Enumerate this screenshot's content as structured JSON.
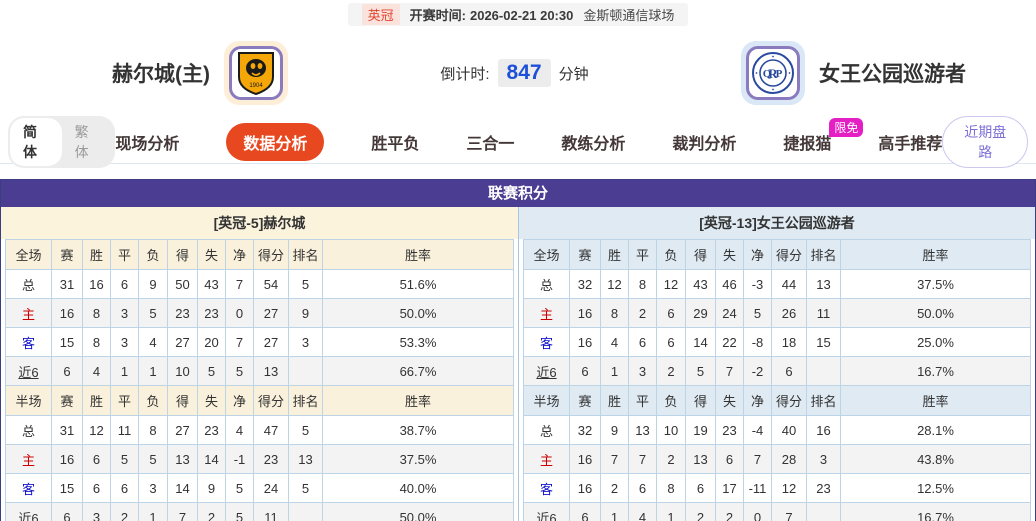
{
  "match_header": {
    "league_badge": "英冠",
    "kickoff_label": "开赛时间:",
    "kickoff_time": "2026-02-21 20:30",
    "venue": "金斯顿通信球场"
  },
  "teams": {
    "home": {
      "name": "赫尔城(主)"
    },
    "away": {
      "name": "女王公园巡游者"
    },
    "countdown": {
      "label": "倒计时:",
      "value": "847",
      "unit": "分钟"
    }
  },
  "nav": {
    "lang_simplified": "简体",
    "lang_traditional": "繁体",
    "tabs": [
      {
        "label": "现场分析",
        "active": false
      },
      {
        "label": "数据分析",
        "active": true
      },
      {
        "label": "胜平负",
        "active": false
      },
      {
        "label": "三合一",
        "active": false
      },
      {
        "label": "教练分析",
        "active": false
      },
      {
        "label": "裁判分析",
        "active": false
      },
      {
        "label": "捷报猫",
        "active": false,
        "badge": "限免"
      },
      {
        "label": "高手推荐",
        "active": false
      }
    ],
    "recent_trends_button": "近期盘路"
  },
  "colors": {
    "panel_header_purple": "#4b3d92",
    "active_tab_red": "#e8481f",
    "badge_magenta": "#e41fc4",
    "trends_purple": "#7d6fd8",
    "home_theme_cream": "#fcf3dd",
    "away_theme_blue": "#dfeaf3",
    "home_row_red": "#cc0000",
    "away_row_blue": "#1414cc",
    "countdown_blue": "#1d4fd8"
  },
  "standings": {
    "title": "联赛积分",
    "left": {
      "section_title": "[英冠-5]赫尔城",
      "sections": [
        {
          "header": [
            "全场",
            "赛",
            "胜",
            "平",
            "负",
            "得",
            "失",
            "净",
            "得分",
            "排名",
            "胜率"
          ],
          "rows": [
            {
              "label": "总",
              "type": "total",
              "cells": [
                "31",
                "16",
                "6",
                "9",
                "50",
                "43",
                "7",
                "54",
                "5",
                "51.6%"
              ]
            },
            {
              "label": "主",
              "type": "home",
              "cells": [
                "16",
                "8",
                "3",
                "5",
                "23",
                "23",
                "0",
                "27",
                "9",
                "50.0%"
              ]
            },
            {
              "label": "客",
              "type": "away",
              "cells": [
                "15",
                "8",
                "3",
                "4",
                "27",
                "20",
                "7",
                "27",
                "3",
                "53.3%"
              ]
            },
            {
              "label": "近6",
              "type": "recent",
              "cells": [
                "6",
                "4",
                "1",
                "1",
                "10",
                "5",
                "5",
                "13",
                "",
                "66.7%"
              ]
            }
          ]
        },
        {
          "header": [
            "半场",
            "赛",
            "胜",
            "平",
            "负",
            "得",
            "失",
            "净",
            "得分",
            "排名",
            "胜率"
          ],
          "rows": [
            {
              "label": "总",
              "type": "total",
              "cells": [
                "31",
                "12",
                "11",
                "8",
                "27",
                "23",
                "4",
                "47",
                "5",
                "38.7%"
              ]
            },
            {
              "label": "主",
              "type": "home",
              "cells": [
                "16",
                "6",
                "5",
                "5",
                "13",
                "14",
                "-1",
                "23",
                "13",
                "37.5%"
              ]
            },
            {
              "label": "客",
              "type": "away",
              "cells": [
                "15",
                "6",
                "6",
                "3",
                "14",
                "9",
                "5",
                "24",
                "5",
                "40.0%"
              ]
            },
            {
              "label": "近6",
              "type": "recent",
              "cells": [
                "6",
                "3",
                "2",
                "1",
                "7",
                "2",
                "5",
                "11",
                "",
                "50.0%"
              ]
            }
          ]
        }
      ]
    },
    "right": {
      "section_title": "[英冠-13]女王公园巡游者",
      "sections": [
        {
          "header": [
            "全场",
            "赛",
            "胜",
            "平",
            "负",
            "得",
            "失",
            "净",
            "得分",
            "排名",
            "胜率"
          ],
          "rows": [
            {
              "label": "总",
              "type": "total",
              "cells": [
                "32",
                "12",
                "8",
                "12",
                "43",
                "46",
                "-3",
                "44",
                "13",
                "37.5%"
              ]
            },
            {
              "label": "主",
              "type": "home",
              "cells": [
                "16",
                "8",
                "2",
                "6",
                "29",
                "24",
                "5",
                "26",
                "11",
                "50.0%"
              ]
            },
            {
              "label": "客",
              "type": "away",
              "cells": [
                "16",
                "4",
                "6",
                "6",
                "14",
                "22",
                "-8",
                "18",
                "15",
                "25.0%"
              ]
            },
            {
              "label": "近6",
              "type": "recent",
              "cells": [
                "6",
                "1",
                "3",
                "2",
                "5",
                "7",
                "-2",
                "6",
                "",
                "16.7%"
              ]
            }
          ]
        },
        {
          "header": [
            "半场",
            "赛",
            "胜",
            "平",
            "负",
            "得",
            "失",
            "净",
            "得分",
            "排名",
            "胜率"
          ],
          "rows": [
            {
              "label": "总",
              "type": "total",
              "cells": [
                "32",
                "9",
                "13",
                "10",
                "19",
                "23",
                "-4",
                "40",
                "16",
                "28.1%"
              ]
            },
            {
              "label": "主",
              "type": "home",
              "cells": [
                "16",
                "7",
                "7",
                "2",
                "13",
                "6",
                "7",
                "28",
                "3",
                "43.8%"
              ]
            },
            {
              "label": "客",
              "type": "away",
              "cells": [
                "16",
                "2",
                "6",
                "8",
                "6",
                "17",
                "-11",
                "12",
                "23",
                "12.5%"
              ]
            },
            {
              "label": "近6",
              "type": "recent",
              "cells": [
                "6",
                "1",
                "4",
                "1",
                "2",
                "2",
                "0",
                "7",
                "",
                "16.7%"
              ]
            }
          ]
        }
      ]
    }
  }
}
